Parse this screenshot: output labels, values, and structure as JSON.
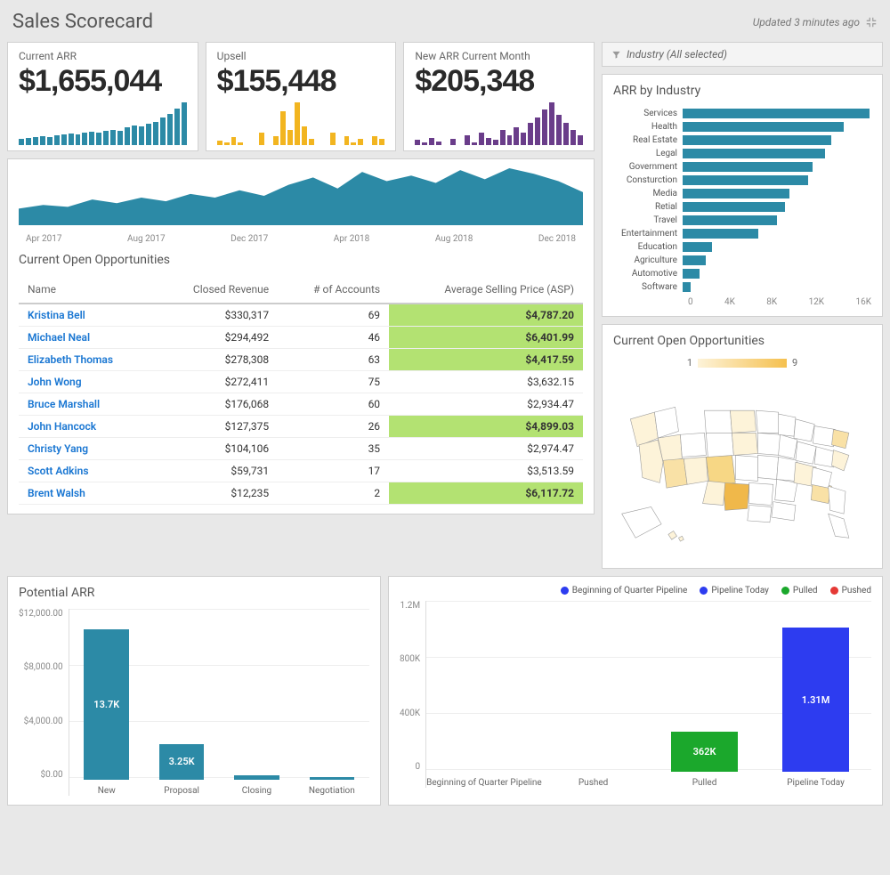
{
  "header": {
    "title": "Sales Scorecard",
    "updated": "Updated 3 minutes ago"
  },
  "colors": {
    "teal": "#2c8aa6",
    "yellow": "#f2b520",
    "purple": "#6a3d8a",
    "link": "#1976d2",
    "highlight": "#b3e272",
    "blue": "#2d3cf0",
    "green": "#1ba82c",
    "red": "#e53935",
    "grid": "#eeeeee",
    "card_border": "#d0d0d0",
    "bg": "#e8e8e8"
  },
  "kpis": [
    {
      "label": "Current ARR",
      "value": "$1,655,044",
      "color": "#2c8aa6",
      "spark": [
        6,
        7,
        8,
        9,
        8,
        10,
        11,
        12,
        11,
        13,
        14,
        13,
        15,
        16,
        15,
        18,
        20,
        19,
        22,
        24,
        28,
        32,
        38,
        44
      ]
    },
    {
      "label": "Upsell",
      "value": "$155,448",
      "color": "#f2b520",
      "spark": [
        3,
        2,
        5,
        2,
        0,
        0,
        8,
        0,
        6,
        22,
        10,
        28,
        12,
        4,
        0,
        0,
        8,
        0,
        6,
        2,
        4,
        0,
        6,
        4
      ]
    },
    {
      "label": "New ARR Current Month",
      "value": "$205,348",
      "color": "#6a3d8a",
      "spark": [
        4,
        2,
        6,
        3,
        0,
        5,
        0,
        8,
        2,
        10,
        6,
        4,
        12,
        8,
        14,
        10,
        18,
        22,
        28,
        34,
        24,
        18,
        12,
        8
      ]
    }
  ],
  "filter": {
    "label": "Industry (All selected)"
  },
  "trend": {
    "color": "#2c8aa6",
    "points": [
      18,
      22,
      20,
      28,
      24,
      30,
      26,
      34,
      30,
      38,
      32,
      44,
      52,
      40,
      58,
      48,
      54,
      46,
      60,
      50,
      62,
      56,
      48,
      36
    ],
    "x_labels": [
      "Apr 2017",
      "Aug 2017",
      "Dec 2017",
      "Apr 2018",
      "Aug 2018",
      "Dec 2018"
    ]
  },
  "opportunities": {
    "title": "Current Open Opportunities",
    "columns": [
      "Name",
      "Closed Revenue",
      "# of Accounts",
      "Average Selling Price (ASP)"
    ],
    "rows": [
      {
        "name": "Kristina Bell",
        "rev": "$330,317",
        "acc": "69",
        "asp": "$4,787.20",
        "hl": true
      },
      {
        "name": "Michael Neal",
        "rev": "$294,492",
        "acc": "46",
        "asp": "$6,401.99",
        "hl": true
      },
      {
        "name": "Elizabeth Thomas",
        "rev": "$278,308",
        "acc": "63",
        "asp": "$4,417.59",
        "hl": true
      },
      {
        "name": "John Wong",
        "rev": "$272,411",
        "acc": "75",
        "asp": "$3,632.15",
        "hl": false
      },
      {
        "name": "Bruce Marshall",
        "rev": "$176,068",
        "acc": "60",
        "asp": "$2,934.47",
        "hl": false
      },
      {
        "name": "John Hancock",
        "rev": "$127,375",
        "acc": "26",
        "asp": "$4,899.03",
        "hl": true
      },
      {
        "name": "Christy Yang",
        "rev": "$104,106",
        "acc": "35",
        "asp": "$2,974.47",
        "hl": false
      },
      {
        "name": "Scott Adkins",
        "rev": "$59,731",
        "acc": "17",
        "asp": "$3,513.59",
        "hl": false
      },
      {
        "name": "Brent Walsh",
        "rev": "$12,235",
        "acc": "2",
        "asp": "$6,117.72",
        "hl": true
      }
    ]
  },
  "industry_chart": {
    "title": "ARR by Industry",
    "color": "#2c8aa6",
    "xmax": 18000,
    "x_ticks": [
      "0",
      "4K",
      "8K",
      "12K",
      "16K"
    ],
    "bars": [
      {
        "label": "Services",
        "v": 17800
      },
      {
        "label": "Health",
        "v": 15400
      },
      {
        "label": "Real Estate",
        "v": 14200
      },
      {
        "label": "Legal",
        "v": 13600
      },
      {
        "label": "Government",
        "v": 12400
      },
      {
        "label": "Consturction",
        "v": 12000
      },
      {
        "label": "Media",
        "v": 10200
      },
      {
        "label": "Retial",
        "v": 9800
      },
      {
        "label": "Travel",
        "v": 9000
      },
      {
        "label": "Entertainment",
        "v": 7200
      },
      {
        "label": "Education",
        "v": 2800
      },
      {
        "label": "Agriculture",
        "v": 2200
      },
      {
        "label": "Automotive",
        "v": 1600
      },
      {
        "label": "Software",
        "v": 800
      }
    ]
  },
  "map": {
    "title": "Current Open Opportunities",
    "legend_min": "1",
    "legend_max": "9"
  },
  "potential": {
    "title": "Potential ARR",
    "color": "#2c8aa6",
    "ymax": 14000,
    "y_ticks": [
      "$12,000.00",
      "$8,000.00",
      "$4,000.00",
      "$0.00"
    ],
    "bars": [
      {
        "label": "New",
        "v": 13700,
        "text": "13.7K"
      },
      {
        "label": "Proposal",
        "v": 3250,
        "text": "3.25K"
      },
      {
        "label": "Closing",
        "v": 400,
        "text": ""
      },
      {
        "label": "Negotiation",
        "v": 250,
        "text": ""
      }
    ]
  },
  "pipeline": {
    "ymax": 1400000,
    "y_ticks": [
      "1.2M",
      "800K",
      "400K",
      "0"
    ],
    "legend": [
      {
        "label": "Beginning of Quarter Pipeline",
        "color": "#2d3cf0"
      },
      {
        "label": "Pipeline Today",
        "color": "#2d3cf0"
      },
      {
        "label": "Pulled",
        "color": "#1ba82c"
      },
      {
        "label": "Pushed",
        "color": "#e53935"
      }
    ],
    "bars": [
      {
        "label": "Beginning of Quarter Pipeline",
        "v": 0,
        "text": "",
        "color": "#2d3cf0"
      },
      {
        "label": "Pushed",
        "v": 0,
        "text": "",
        "color": "#e53935"
      },
      {
        "label": "Pulled",
        "v": 362000,
        "text": "362K",
        "color": "#1ba82c"
      },
      {
        "label": "Pipeline Today",
        "v": 1310000,
        "text": "1.31M",
        "color": "#2d3cf0"
      }
    ]
  }
}
